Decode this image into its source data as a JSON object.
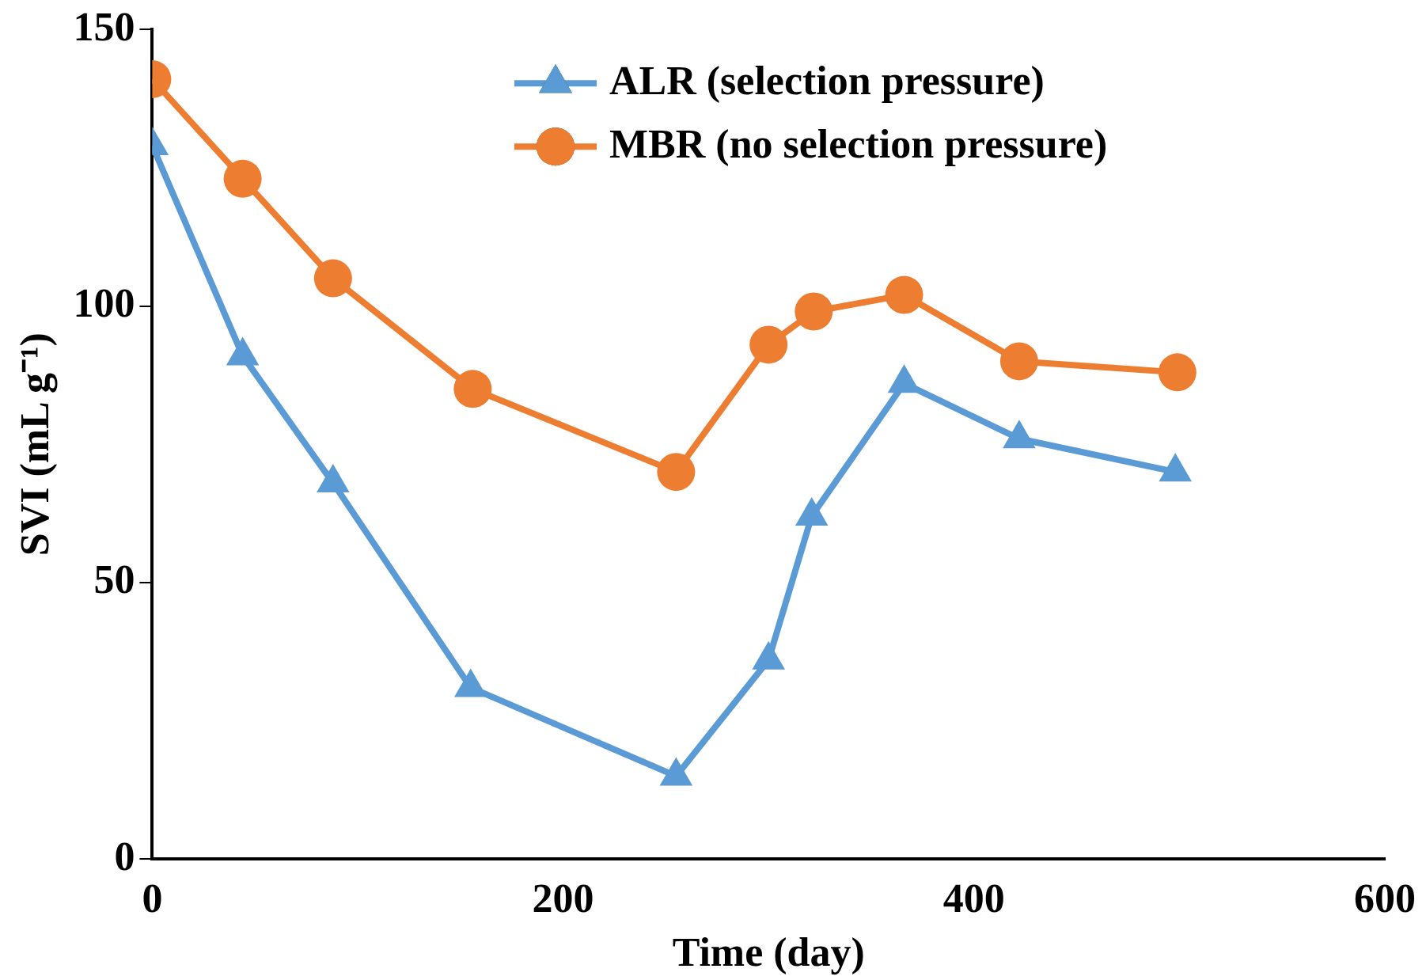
{
  "chart_data": {
    "type": "line",
    "xlabel": "Time (day)",
    "ylabel": "SVI (mL g⁻¹)",
    "xlim": [
      0,
      600
    ],
    "xticks": [
      0,
      200,
      400,
      600
    ],
    "ylim": [
      0,
      150
    ],
    "yticks": [
      0,
      50,
      100,
      150
    ],
    "grid": false,
    "legend": "top right",
    "line_style": "solid",
    "series": [
      {
        "name": "ALR (selection pressure)",
        "color": "#5b9bd5",
        "marker": "triangle",
        "x": [
          0,
          44,
          88,
          155,
          255,
          300,
          321,
          366,
          422,
          498
        ],
        "values": [
          129,
          91,
          68,
          31,
          15,
          36,
          62,
          86,
          76,
          70
        ]
      },
      {
        "name": "MBR (no selection pressure)",
        "color": "#ed7d31",
        "marker": "circle",
        "x": [
          0,
          44,
          88,
          156,
          255,
          300,
          322,
          366,
          422,
          499
        ],
        "values": [
          141,
          123,
          105,
          85,
          70,
          93,
          99,
          102,
          90,
          88
        ]
      }
    ]
  }
}
